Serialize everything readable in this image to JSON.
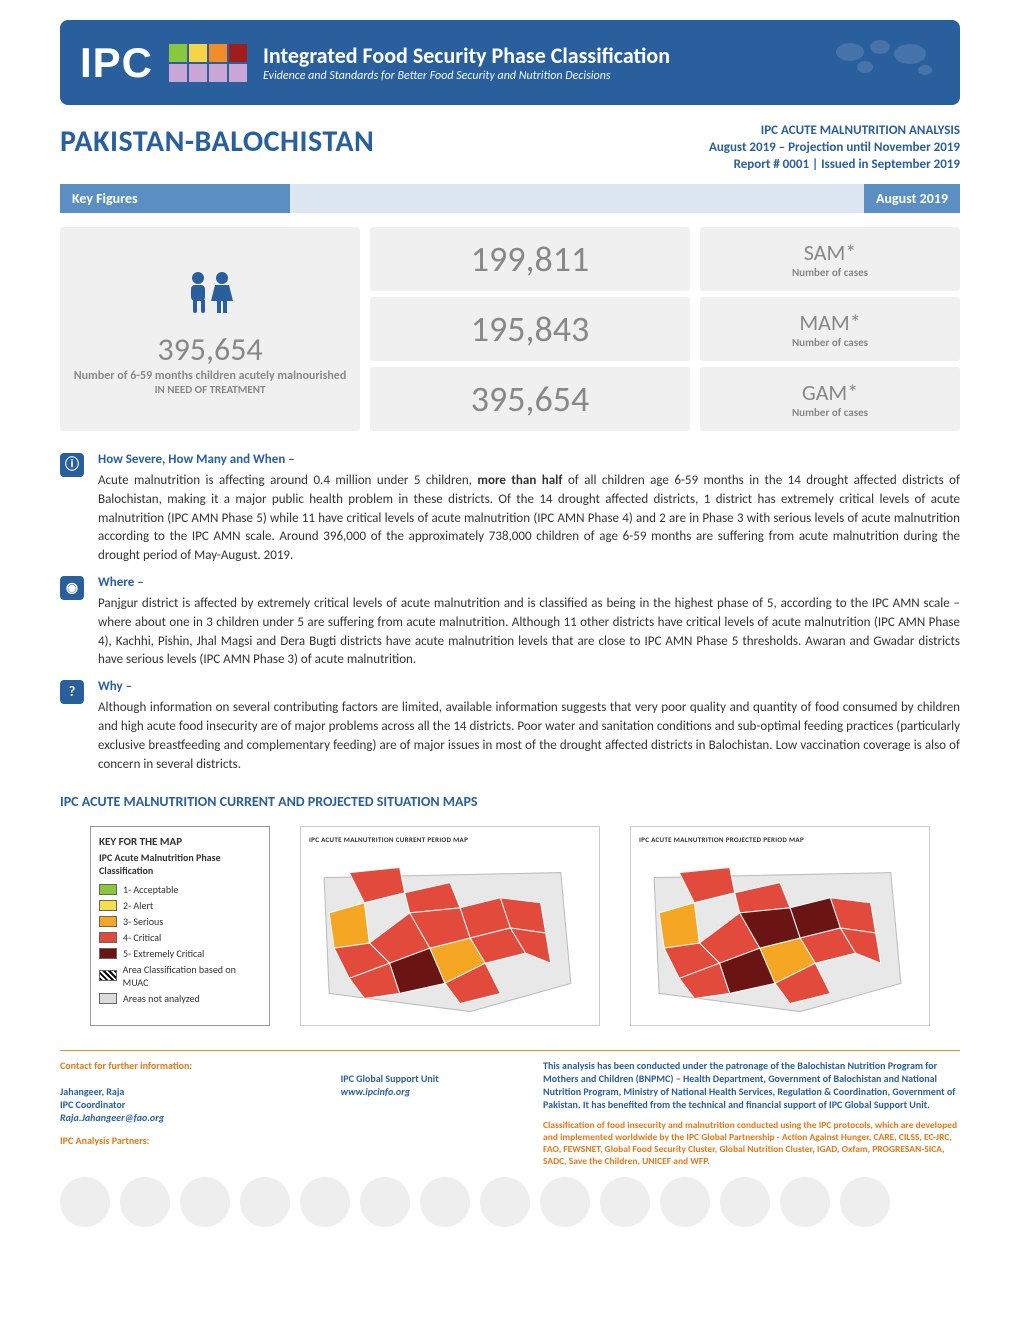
{
  "banner": {
    "logo": "IPC",
    "grid_colors": [
      "#8bc63f",
      "#f5d547",
      "#f28c28",
      "#a11d1d",
      "#c9a6d6",
      "#c9a6d6",
      "#c9a6d6",
      "#c9a6d6"
    ],
    "title": "Integrated Food Security Phase Classification",
    "subtitle": "Evidence and Standards for Better Food Security and Nutrition Decisions"
  },
  "header": {
    "title": "PAKISTAN-BALOCHISTAN",
    "line1": "IPC ACUTE MALNUTRITION ANALYSIS",
    "line2": "August 2019 – Projection until November 2019",
    "line3": "Report # 0001 | Issued in September 2019"
  },
  "keyfig": {
    "label": "Key Figures",
    "date": "August 2019"
  },
  "stats": {
    "total": "395,654",
    "total_desc1": "Number of 6-59 months children acutely malnourished",
    "total_desc2": "IN NEED OF TREATMENT",
    "sam_n": "199,811",
    "sam": "SAM*",
    "sam_sub": "Number of cases",
    "mam_n": "195,843",
    "mam": "MAM*",
    "mam_sub": "Number of cases",
    "gam_n": "395,654",
    "gam": "GAM*",
    "gam_sub": "Number of cases"
  },
  "sections": {
    "s1_title": "How Severe, How Many and When –",
    "s1_body": "Acute malnutrition is affecting around 0.4 million under 5 children, more than half of all children age 6-59 months in the 14 drought affected districts of Balochistan, making it a major public health problem in these districts. Of the 14 drought affected districts, 1 district has extremely critical levels of acute malnutrition (IPC AMN Phase 5) while 11 have critical levels of acute malnutrition (IPC AMN Phase 4) and 2 are in Phase 3 with serious levels of acute malnutrition according to the IPC AMN scale. Around 396,000 of the approximately 738,000 children of age 6-59 months are suffering from acute malnutrition during the drought period of May-August. 2019.",
    "s2_title": "Where –",
    "s2_body": "Panjgur district is affected by extremely critical levels of acute malnutrition and is classified as being in the highest phase of 5, according to the IPC AMN scale – where about one in 3 children under 5 are suffering from acute malnutrition. Although 11 other districts have critical levels of acute malnutrition (IPC AMN Phase 4), Kachhi, Pishin, Jhal Magsi and Dera Bugti districts have acute malnutrition levels that are close to IPC AMN Phase 5 thresholds. Awaran and Gwadar districts have serious levels (IPC AMN Phase 3) of acute malnutrition.",
    "s3_title": "Why –",
    "s3_body": "Although information on several contributing factors are limited, available information suggests that very poor quality and quantity of food consumed by children and high acute food insecurity are of major problems across all the 14 districts. Poor water and sanitation conditions and sub-optimal feeding practices (particularly exclusive breastfeeding and complementary feeding) are of major issues in most of the drought affected districts in Balochistan. Low vaccination coverage is also of concern in several districts."
  },
  "maps": {
    "title": "IPC ACUTE MALNUTRITION CURRENT AND PROJECTED SITUATION MAPS",
    "key_title": "KEY FOR THE MAP",
    "key_sub": "IPC Acute Malnutrition Phase Classification",
    "levels": [
      {
        "label": "1- Acceptable",
        "color": "#8bc63f"
      },
      {
        "label": "2- Alert",
        "color": "#f5e04b"
      },
      {
        "label": "3- Serious",
        "color": "#f5a623"
      },
      {
        "label": "4- Critical",
        "color": "#e24a3b"
      },
      {
        "label": "5- Extremely Critical",
        "color": "#6b1414"
      }
    ],
    "hatch_label": "Area Classification based on MUAC",
    "na_label": "Areas not analyzed",
    "na_color": "#dcdcdc",
    "panel1_title": "IPC ACUTE MALNUTRITION CURRENT PERIOD MAP",
    "panel2_title": "IPC ACUTE MALNUTRITION PROJECTED PERIOD MAP",
    "shape_colors_current": [
      "#e24a3b",
      "#e24a3b",
      "#f5a623",
      "#e24a3b",
      "#6b1414",
      "#e24a3b",
      "#e24a3b",
      "#f5a623",
      "#e24a3b",
      "#e24a3b",
      "#e24a3b",
      "#e24a3b",
      "#e24a3b",
      "#e24a3b"
    ],
    "shape_colors_proj": [
      "#e24a3b",
      "#e24a3b",
      "#f5a623",
      "#e24a3b",
      "#6b1414",
      "#6b1414",
      "#e24a3b",
      "#f5a623",
      "#e24a3b",
      "#e24a3b",
      "#6b1414",
      "#e24a3b",
      "#e24a3b",
      "#e24a3b"
    ]
  },
  "footer": {
    "contact_hdr": "Contact for further information:",
    "name": "Jahangeer, Raja",
    "role": "IPC Coordinator",
    "email": "Raja.Jahangeer@fao.org",
    "unit": "IPC Global Support Unit",
    "site": "www.ipcinfo.org",
    "patron": "This analysis has been conducted under the patronage of the  Balochistan Nutrition Program for Mothers and Children (BNPMC) – Health Department, Government of Balochistan and National Nutrition Program, Ministry of National Health Services, Regulation & Coordination, Government of Pakistan. It has benefited from the technical and financial support of IPC Global Support Unit.",
    "partners_hdr": "IPC Analysis Partners:",
    "class": "Classification of food insecurity and malnutrition conducted using the IPC protocols, which are developed and implemented worldwide by the IPC Global Partnership - Action Against Hunger, CARE, CILSS, EC-JRC, FAO, FEWSNET, Global Food Security Cluster, Global Nutrition Cluster, IGAD, Oxfam, PROGRESAN-SICA, SADC, Save the Children, UNICEF and WFP."
  }
}
